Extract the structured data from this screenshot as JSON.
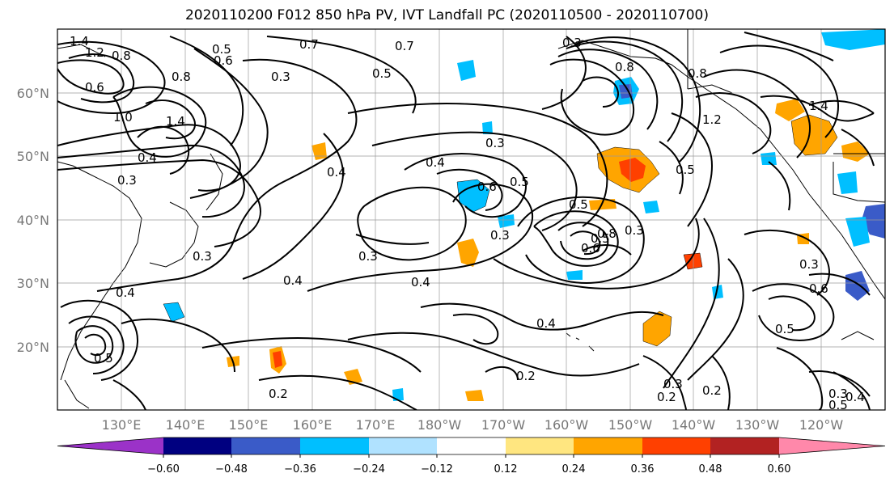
{
  "title": "2020110200 F012 850 hPa PV, IVT Landfall PC (2020110500 - 2020110700)",
  "latitude_labels": [
    "60°N",
    "50°N",
    "40°N",
    "30°N",
    "20°N"
  ],
  "longitude_labels": [
    "130°E",
    "140°E",
    "150°E",
    "160°E",
    "170°E",
    "180°W",
    "170°W",
    "160°W",
    "150°W",
    "140°W",
    "130°W",
    "120°W"
  ],
  "colorbar": {
    "ticks": [
      "−0.60",
      "−0.48",
      "−0.36",
      "−0.24",
      "−0.12",
      "0.12",
      "0.24",
      "0.36",
      "0.48",
      "0.60"
    ],
    "colors": [
      "#9b32c8",
      "#000080",
      "#3a5bc8",
      "#00bfff",
      "#b0e2ff",
      "#ffffff",
      "#ffe680",
      "#ffa500",
      "#ff4000",
      "#b22222",
      "#ff88aa"
    ]
  },
  "contour_labels": [
    "1.4",
    "1.2",
    "0.8",
    "0.6",
    "0.5",
    "0.7",
    "0.6",
    "0.8",
    "1.0",
    "1.4",
    "0.4",
    "0.3",
    "0.5",
    "0.3",
    "0.4",
    "0.7",
    "0.5",
    "0.3",
    "0.3",
    "0.8",
    "0.6",
    "1.2",
    "0.8",
    "0.5",
    "1.4",
    "0.4",
    "0.6",
    "0.5",
    "0.3",
    "0.5",
    "0.3",
    "0.8",
    "0.3",
    "0.3",
    "0.4",
    "0.4",
    "0.4",
    "0.3",
    "0.4",
    "0.2",
    "0.2",
    "0.3",
    "0.2",
    "0.2",
    "0.6",
    "0.5",
    "0.3",
    "0.4",
    "0.5",
    "0.5"
  ]
}
